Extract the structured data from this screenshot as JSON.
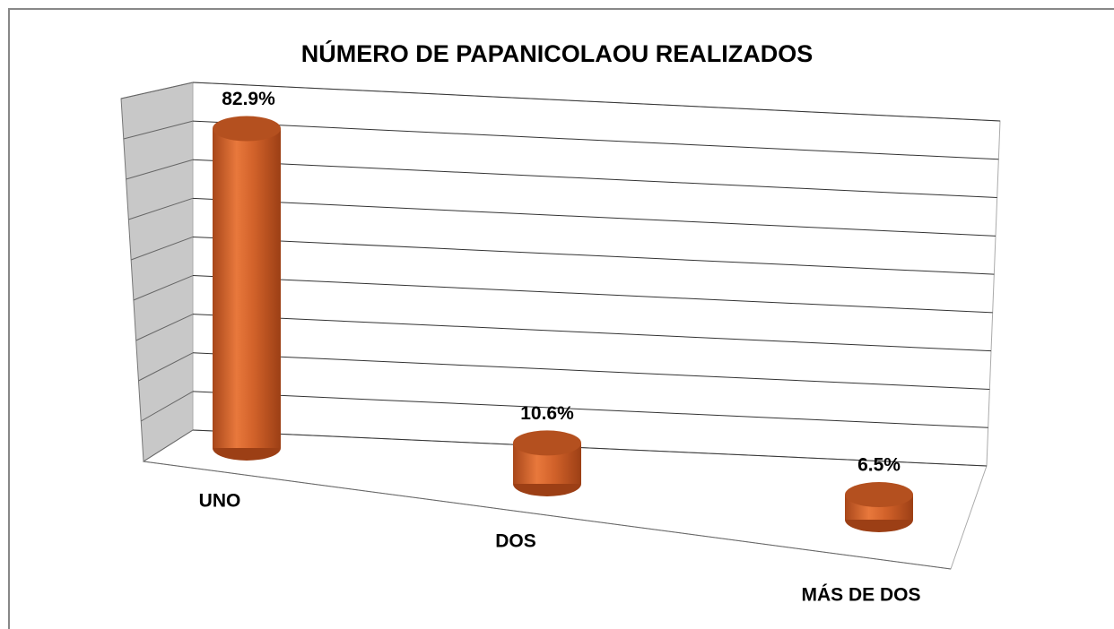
{
  "chart_data": {
    "type": "bar3d",
    "title": "NÚMERO DE PAPANICOLAOU REALIZADOS",
    "categories": [
      "UNO",
      "DOS",
      "MÁS DE DOS"
    ],
    "values": [
      82.9,
      10.6,
      6.5
    ],
    "value_labels": [
      "82.9%",
      "10.6%",
      "6.5%"
    ],
    "color": "#d2622a",
    "ylim": [
      0,
      90
    ],
    "yticks": [
      0,
      10,
      20,
      30,
      40,
      50,
      60,
      70,
      80,
      90
    ],
    "grid": true
  }
}
